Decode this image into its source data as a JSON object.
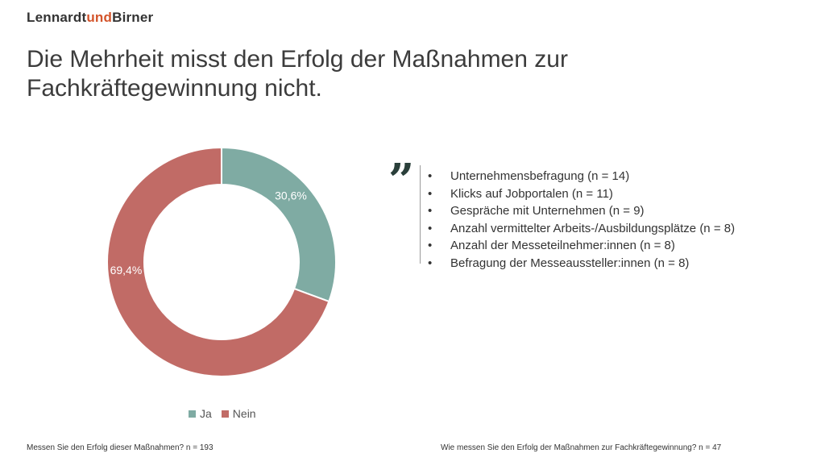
{
  "logo": {
    "part1": "Lennardt",
    "part2": "und",
    "part3": "Birner"
  },
  "headline": "Die Mehrheit misst den Erfolg der Maßnahmen zur Fachkräftegewinnung nicht.",
  "colors": {
    "ja": "#7faba3",
    "nein": "#c16b66",
    "accent": "#d3542b"
  },
  "chart_data": {
    "type": "pie",
    "variant": "donut",
    "categories": [
      "Ja",
      "Nein"
    ],
    "values": [
      30.6,
      69.4
    ],
    "data_labels": [
      "30,6%",
      "69,4%"
    ],
    "colors": [
      "#7faba3",
      "#c16b66"
    ],
    "legend": {
      "position": "bottom",
      "entries": [
        "Ja",
        "Nein"
      ]
    }
  },
  "quote": {
    "mark": "”",
    "items": [
      "Unternehmensbefragung (n = 14)",
      "Klicks auf Jobportalen (n = 11)",
      "Gespräche mit Unternehmen (n = 9)",
      "Anzahl vermittelter Arbeits-/Ausbildungsplätze (n = 8)",
      "Anzahl der Messeteilnehmer:innen (n = 8)",
      "Befragung der Messeaussteller:innen (n = 8)"
    ]
  },
  "footnotes": {
    "left": "Messen Sie den Erfolg dieser Maßnahmen? n = 193",
    "right": "Wie messen Sie den Erfolg der Maßnahmen zur Fachkräftegewinnung? n = 47"
  }
}
